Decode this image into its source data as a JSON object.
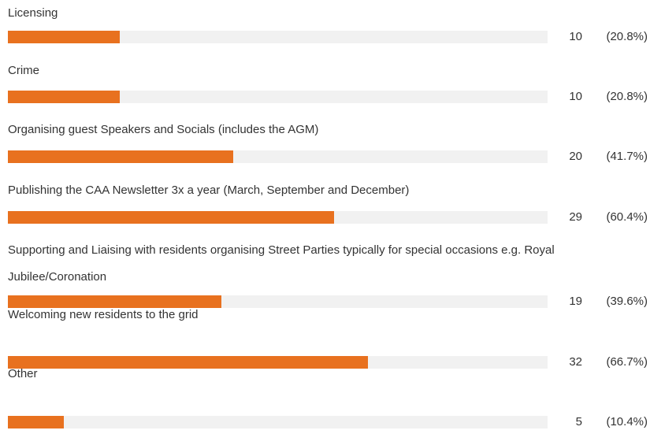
{
  "chart_data": {
    "type": "bar",
    "categories": [
      "Licensing",
      "Crime",
      "Organising guest Speakers and Socials (includes the AGM)",
      "Publishing the CAA Newsletter 3x a year (March, September and December)",
      "Supporting and Liaising with residents organising Street Parties typically for special occasions e.g. Royal Jubilee/Coronation",
      "Welcoming new residents to the grid",
      "Other"
    ],
    "values": [
      10,
      10,
      20,
      29,
      19,
      32,
      5
    ],
    "percentages": [
      20.8,
      20.8,
      41.7,
      60.4,
      39.6,
      66.7,
      10.4
    ],
    "percent_labels": [
      "(20.8%)",
      "(20.8%)",
      "(41.7%)",
      "(60.4%)",
      "(39.6%)",
      "(66.7%)",
      "(10.4%)"
    ],
    "xlim": [
      0,
      100
    ],
    "color": "#e8711f"
  }
}
